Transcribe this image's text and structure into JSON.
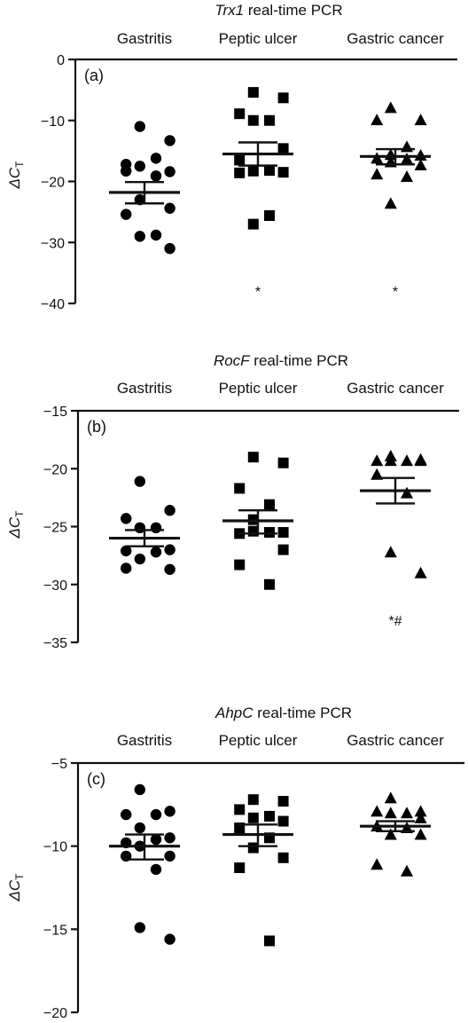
{
  "chart_data": [
    {
      "type": "scatter",
      "panel_label": "(a)",
      "title_italic": "Trx1",
      "title_rest": " real-time PCR",
      "ylabel": "ΔC",
      "ylabel_sub": "T",
      "ylim": [
        -40,
        0
      ],
      "yticks": [
        "0",
        "−10",
        "−20",
        "−30",
        "−40"
      ],
      "ytick_values": [
        0,
        -10,
        -20,
        -30,
        -40
      ],
      "categories": [
        "Gastritis",
        "Peptic ulcer",
        "Gastric cancer"
      ],
      "series": [
        {
          "category": "Gastritis",
          "marker": "circle",
          "mean": -21.8,
          "sem_upper": -20.1,
          "sem_lower": -23.6,
          "points": [
            -11.0,
            -13.3,
            -17.2,
            -16.2,
            -17.5,
            -18.4,
            -18.3,
            -19.1,
            -23.0,
            -24.4,
            -25.4,
            -28.8,
            -29.0,
            -31.0
          ],
          "annotation": ""
        },
        {
          "category": "Peptic ulcer",
          "marker": "square",
          "mean": -15.5,
          "sem_upper": -13.6,
          "sem_lower": -17.4,
          "points": [
            -5.4,
            -6.3,
            -8.9,
            -10.0,
            -10.0,
            -14.6,
            -16.5,
            -18.2,
            -18.3,
            -18.5,
            -18.6,
            -25.6,
            -27.0
          ],
          "annotation": "*"
        },
        {
          "category": "Gastric cancer",
          "marker": "triangle",
          "mean": -15.9,
          "sem_upper": -14.7,
          "sem_lower": -17.2,
          "points": [
            -7.9,
            -9.9,
            -9.9,
            -14.3,
            -15.6,
            -15.7,
            -16.2,
            -16.3,
            -16.8,
            -17.3,
            -18.8,
            -19.2,
            -23.6
          ],
          "annotation": "*"
        }
      ]
    },
    {
      "type": "scatter",
      "panel_label": "(b)",
      "title_italic": "RocF",
      "title_rest": " real-time PCR",
      "ylabel": "ΔC",
      "ylabel_sub": "T",
      "ylim": [
        -35,
        -15
      ],
      "yticks": [
        "−15",
        "−20",
        "−25",
        "−30",
        "−35"
      ],
      "ytick_values": [
        -15,
        -20,
        -25,
        -30,
        -35
      ],
      "categories": [
        "Gastritis",
        "Peptic ulcer",
        "Gastric cancer"
      ],
      "series": [
        {
          "category": "Gastritis",
          "marker": "circle",
          "mean": -26.0,
          "sem_upper": -25.3,
          "sem_lower": -26.7,
          "points": [
            -21.1,
            -23.6,
            -24.3,
            -25.1,
            -25.1,
            -27.0,
            -27.1,
            -27.2,
            -27.8,
            -28.7,
            -28.6
          ],
          "annotation": ""
        },
        {
          "category": "Peptic ulcer",
          "marker": "square",
          "mean": -24.5,
          "sem_upper": -23.6,
          "sem_lower": -25.6,
          "points": [
            -19.0,
            -19.5,
            -21.7,
            -23.1,
            -24.4,
            -25.5,
            -25.6,
            -25.5,
            -25.4,
            -27.0,
            -28.3,
            -30.0
          ],
          "annotation": ""
        },
        {
          "category": "Gastric cancer",
          "marker": "triangle",
          "mean": -21.9,
          "sem_upper": -20.8,
          "sem_lower": -23.0,
          "points": [
            -18.9,
            -19.2,
            -19.3,
            -19.3,
            -19.3,
            -19.3,
            -20.5,
            -22.1,
            -27.2,
            -29.0
          ],
          "annotation": "*#"
        }
      ]
    },
    {
      "type": "scatter",
      "panel_label": "(c)",
      "title_italic": "AhpC",
      "title_rest": " real-time PCR",
      "ylabel": "ΔC",
      "ylabel_sub": "T",
      "ylim": [
        -20,
        -5
      ],
      "yticks": [
        "−5",
        "−10",
        "−15",
        "−20"
      ],
      "ytick_values": [
        -5,
        -10,
        -15,
        -20
      ],
      "categories": [
        "Gastritis",
        "Peptic ulcer",
        "Gastric cancer"
      ],
      "series": [
        {
          "category": "Gastritis",
          "marker": "circle",
          "mean": -10.0,
          "sem_upper": -9.3,
          "sem_lower": -10.8,
          "points": [
            -6.6,
            -7.9,
            -8.1,
            -8.1,
            -8.9,
            -9.5,
            -9.8,
            -9.6,
            -10.0,
            -10.6,
            -10.6,
            -11.4,
            -14.9,
            -15.6
          ],
          "annotation": ""
        },
        {
          "category": "Peptic ulcer",
          "marker": "square",
          "mean": -9.3,
          "sem_upper": -8.7,
          "sem_lower": -10.0,
          "points": [
            -7.2,
            -7.3,
            -7.8,
            -8.2,
            -8.3,
            -8.5,
            -8.9,
            -9.5,
            -10.1,
            -10.7,
            -11.3,
            -15.7
          ],
          "annotation": ""
        },
        {
          "category": "Gastric cancer",
          "marker": "triangle",
          "mean": -8.8,
          "sem_upper": -8.5,
          "sem_lower": -9.1,
          "points": [
            -7.1,
            -7.9,
            -7.9,
            -8.0,
            -8.0,
            -8.3,
            -8.8,
            -8.9,
            -9.3,
            -9.3,
            -11.1,
            -11.5
          ],
          "annotation": ""
        }
      ]
    }
  ]
}
